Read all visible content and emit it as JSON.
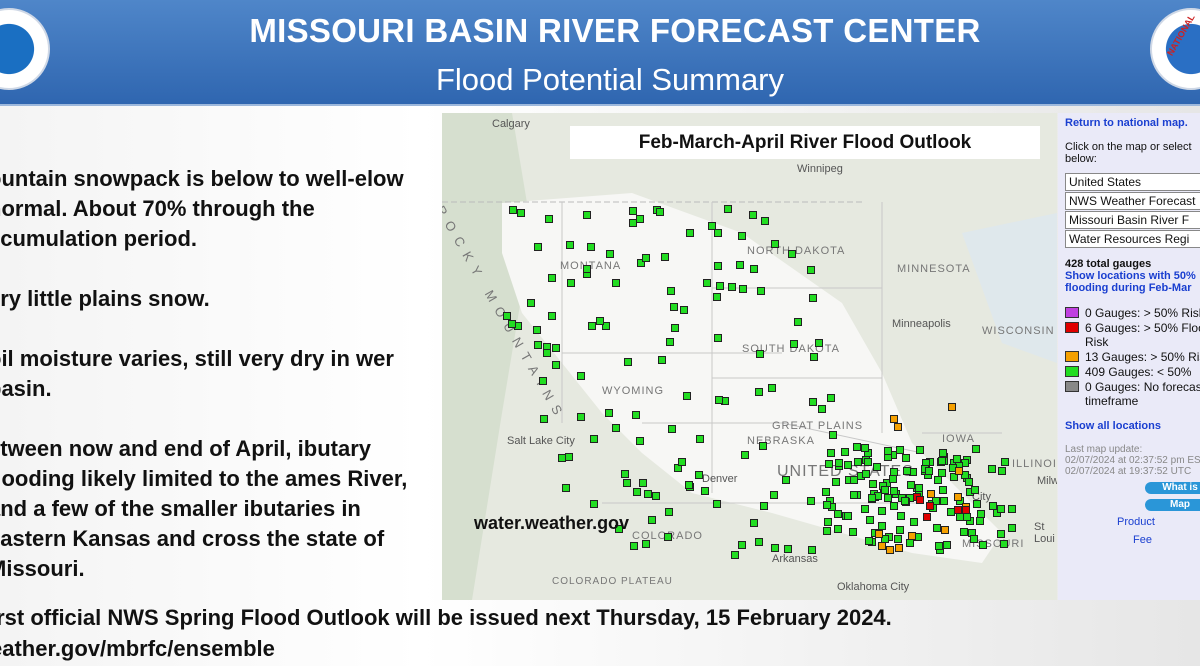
{
  "header": {
    "title": "MISSOURI BASIN RIVER FORECAST CENTER",
    "subtitle": "Flood Potential Summary"
  },
  "bullets": [
    "ountain snowpack is below to well-elow normal.  About 70% through the ccumulation period.",
    "ery little plains snow.",
    "oil moisture varies, still very dry in wer basin.",
    "etween now and end of April, ibutary flooding likely limited to the ames River, and a few of the smaller ibutaries in eastern Kansas and cross the state of Missouri."
  ],
  "footer": {
    "line1": "irst official NWS Spring Flood Outlook will be issued next Thursday, 15 February 2024.",
    "line2": "eather.gov/mbrfc/ensemble"
  },
  "map": {
    "title": "Feb-March-April River Flood Outlook",
    "watermark": "water.weather.gov",
    "labels": {
      "montana": "MONTANA",
      "north_dakota": "NORTH DAKOTA",
      "minnesota": "MINNESOTA",
      "south_dakota": "SOUTH DAKOTA",
      "wisconsin": "WISCONSIN",
      "wyoming": "WYOMING",
      "nebraska": "NEBRASKA",
      "iowa": "IOWA",
      "illinois": "ILLINOIS",
      "colorado": "COLORADO",
      "missouri": "MISSOURI",
      "great_plains": "GREAT PLAINS",
      "united_states": "UNITED STATES",
      "rocky": "ROCKY MOUNTAINS",
      "plateau": "COLORADO PLATEAU"
    },
    "cities": {
      "calgary": "Calgary",
      "winnipeg": "Winnipeg",
      "minneapolis": "Minneapolis",
      "salt_lake": "Salt Lake City",
      "denver": "Denver",
      "oklahoma": "Oklahoma City",
      "milwaukee": "Milw",
      "st_louis": "St Loui",
      "arkansas": "Arkansas",
      "kc": "City"
    }
  },
  "panel": {
    "return_link": "Return to national map.",
    "instructions": "Click on the map or select below:",
    "selects": [
      "United States",
      "NWS Weather Forecast",
      "Missouri Basin River F",
      "Water Resources Regi"
    ],
    "total": "428 total gauges",
    "show_50": "Show locations with 50% flooding during Feb-Mar",
    "legend": [
      {
        "text": "0 Gauges: > 50% Risk",
        "color": "#c040e0",
        "count": 0
      },
      {
        "text": "6 Gauges: > 50% Flood Risk",
        "color": "#e00000",
        "count": 6
      },
      {
        "text": "13 Gauges: > 50% Risk",
        "color": "#f5a000",
        "count": 13
      },
      {
        "text": "409 Gauges: < 50%",
        "color": "#22dd22",
        "count": 409
      },
      {
        "text": "0 Gauges: No forecast timeframe",
        "color": "#888888",
        "count": 0
      }
    ],
    "show_all": "Show all locations",
    "update_label": "Last map update:",
    "update_local": "02/07/2024 at 02:37:52 pm EST",
    "update_utc": "02/07/2024 at 19:37:52 UTC",
    "btn_what": "What is",
    "btn_map": "Map",
    "product": "Product",
    "feedback": "Fee"
  }
}
